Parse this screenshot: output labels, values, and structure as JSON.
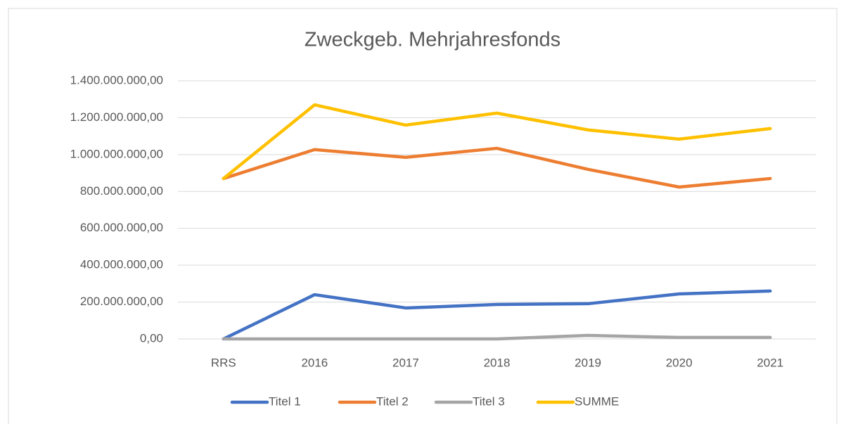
{
  "chart_data": {
    "type": "line",
    "title": "Zweckgeb. Mehrjahresfonds",
    "categories": [
      "RRS",
      "2016",
      "2017",
      "2018",
      "2019",
      "2020",
      "2021"
    ],
    "series": [
      {
        "name": "Titel 1",
        "color": "#4472c4",
        "values": [
          0,
          240000000,
          168000000,
          187000000,
          191000000,
          244000000,
          260000000
        ]
      },
      {
        "name": "Titel 2",
        "color": "#ed7d31",
        "values": [
          870000000,
          1027000000,
          985000000,
          1034000000,
          920000000,
          824000000,
          870000000
        ]
      },
      {
        "name": "Titel 3",
        "color": "#a5a5a5",
        "values": [
          0,
          0,
          0,
          0,
          19000000,
          8000000,
          8000000
        ]
      },
      {
        "name": "SUMME",
        "color": "#ffc000",
        "values": [
          870000000,
          1270000000,
          1160000000,
          1225000000,
          1134000000,
          1084000000,
          1141000000
        ]
      }
    ],
    "ylim": [
      0,
      1400000000
    ],
    "yticks": [
      {
        "value": 0,
        "label": "0,00"
      },
      {
        "value": 200000000,
        "label": "200.000.000,00"
      },
      {
        "value": 400000000,
        "label": "400.000.000,00"
      },
      {
        "value": 600000000,
        "label": "600.000.000,00"
      },
      {
        "value": 800000000,
        "label": "800.000.000,00"
      },
      {
        "value": 1000000000,
        "label": "1.000.000.000,00"
      },
      {
        "value": 1200000000,
        "label": "1.200.000.000,00"
      },
      {
        "value": 1400000000,
        "label": "1.400.000.000,00"
      }
    ],
    "grid": true,
    "legend": "bottom"
  }
}
